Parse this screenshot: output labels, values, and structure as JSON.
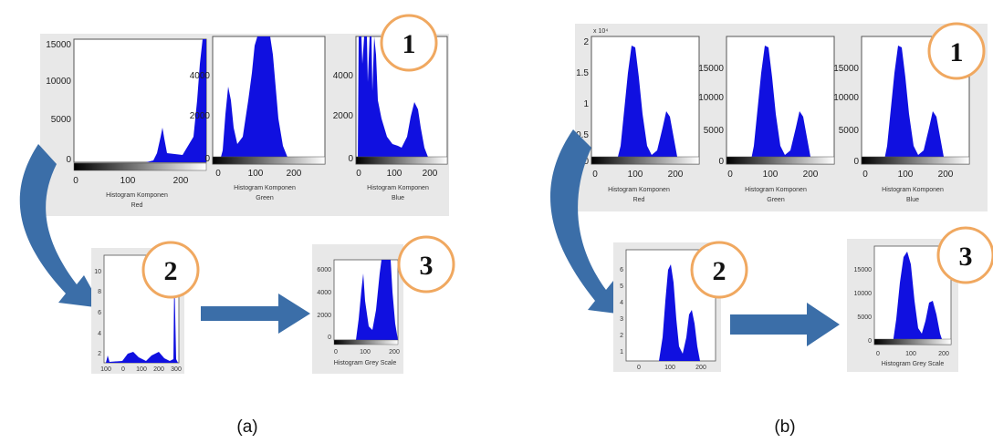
{
  "colors": {
    "histogram": "#1010e0",
    "arrow": "#3b6ea8",
    "circle_border": "#f0a860",
    "panel_bg": "#e8e8e8"
  },
  "panel_labels": [
    "(a)",
    "(b)"
  ],
  "panels": [
    {
      "top_row": [
        {
          "y_ticks": [
            "15000",
            "10000",
            "5000",
            "0"
          ],
          "x_ticks": [
            "0",
            "100",
            "200"
          ],
          "cap1": "Histogram Komponen",
          "cap2": "Red"
        },
        {
          "y_ticks": [
            "4000",
            "2000",
            "0"
          ],
          "x_ticks": [
            "0",
            "100",
            "200"
          ],
          "cap1": "Histogram Komponen",
          "cap2": "Green"
        },
        {
          "y_ticks": [
            "4000",
            "2000",
            "0"
          ],
          "x_ticks": [
            "0",
            "100",
            "200"
          ],
          "cap1": "Histogram Komponen",
          "cap2": "Blue"
        }
      ],
      "step2": {
        "y_ticks": [
          "10",
          "8",
          "6",
          "4",
          "2"
        ],
        "x_ticks": [
          "100",
          "0",
          "100",
          "200",
          "300"
        ]
      },
      "step3": {
        "y_ticks": [
          "6000",
          "4000",
          "2000",
          "0"
        ],
        "x_ticks": [
          "0",
          "100",
          "200"
        ],
        "cap1": "Histogram Grey Scale"
      }
    },
    {
      "exponent": "x 10⁴",
      "top_row": [
        {
          "y_ticks": [
            "2",
            "1.5",
            "1",
            "0.5",
            "0"
          ],
          "x_ticks": [
            "0",
            "100",
            "200"
          ],
          "cap1": "Histogram Komponen",
          "cap2": "Red"
        },
        {
          "y_ticks": [
            "15000",
            "10000",
            "5000",
            "0"
          ],
          "x_ticks": [
            "0",
            "100",
            "200"
          ],
          "cap1": "Histogram Komponen",
          "cap2": "Green"
        },
        {
          "y_ticks": [
            "15000",
            "10000",
            "5000",
            "0"
          ],
          "x_ticks": [
            "0",
            "100",
            "200"
          ],
          "cap1": "Histogram Komponen",
          "cap2": "Blue"
        }
      ],
      "step2": {
        "y_ticks": [
          "6",
          "5",
          "4",
          "3",
          "2",
          "1"
        ],
        "x_ticks": [
          "0",
          "100",
          "200"
        ]
      },
      "step3": {
        "y_ticks": [
          "15000",
          "10000",
          "5000",
          "0"
        ],
        "x_ticks": [
          "0",
          "100",
          "200"
        ],
        "cap1": "Histogram Grey Scale"
      }
    }
  ],
  "step_numbers": [
    "1",
    "2",
    "3"
  ]
}
